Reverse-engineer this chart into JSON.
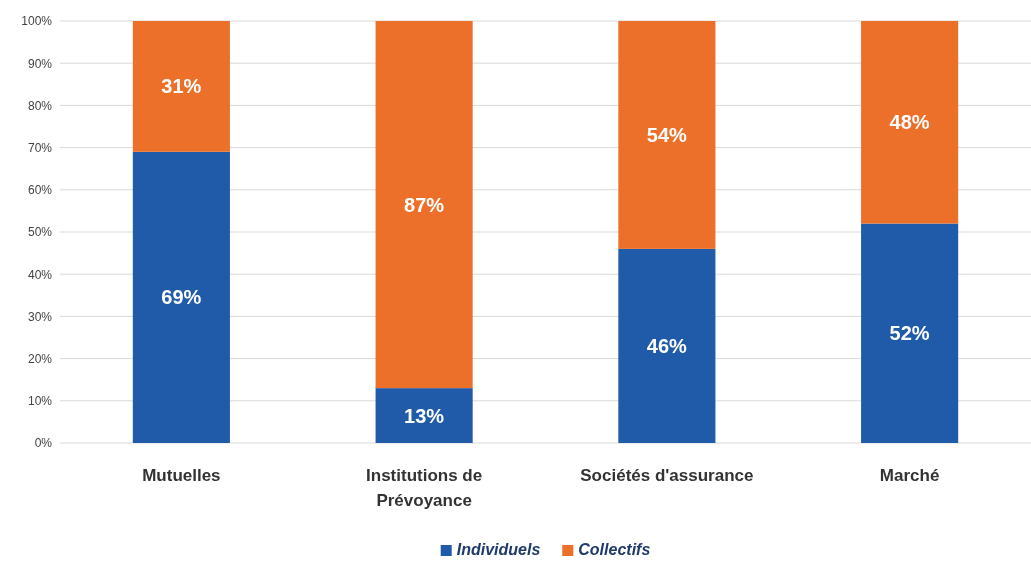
{
  "chart_data": {
    "type": "bar",
    "stacked": true,
    "categories": [
      "Mutuelles",
      "Institutions de Prévoyance",
      "Sociétés d'assurance",
      "Marché"
    ],
    "series": [
      {
        "name": "Individuels",
        "color": "#1f5ba8",
        "values": [
          69,
          13,
          46,
          52
        ],
        "value_labels": [
          "69%",
          "13%",
          "46%",
          "52%"
        ]
      },
      {
        "name": "Collectifs",
        "color": "#ec702a",
        "values": [
          31,
          87,
          54,
          48
        ],
        "value_labels": [
          "31%",
          "87%",
          "54%",
          "48%"
        ]
      }
    ],
    "ylim": [
      0,
      100
    ],
    "yticks": [
      {
        "value": 0,
        "label": "0%"
      },
      {
        "value": 10,
        "label": "10%"
      },
      {
        "value": 20,
        "label": "20%"
      },
      {
        "value": 30,
        "label": "30%"
      },
      {
        "value": 40,
        "label": "40%"
      },
      {
        "value": 50,
        "label": "50%"
      },
      {
        "value": 60,
        "label": "60%"
      },
      {
        "value": 70,
        "label": "70%"
      },
      {
        "value": 80,
        "label": "80%"
      },
      {
        "value": 90,
        "label": "90%"
      },
      {
        "value": 100,
        "label": "100%"
      }
    ],
    "grid": "y",
    "legend": "bottom"
  }
}
